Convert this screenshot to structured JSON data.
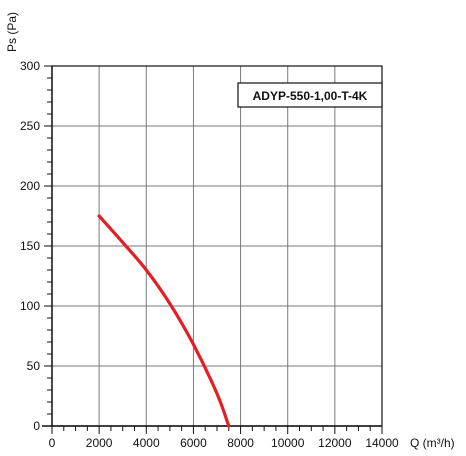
{
  "chart_data": {
    "type": "line",
    "model_label": "ADYP-550-1,00-T-4K",
    "xlabel": "Q (m³/h)",
    "ylabel": "Ps (Pa)",
    "xlim": [
      0,
      14000
    ],
    "ylim": [
      0,
      300
    ],
    "x_ticks": [
      0,
      2000,
      4000,
      6000,
      8000,
      10000,
      12000,
      14000
    ],
    "y_ticks": [
      0,
      50,
      100,
      150,
      200,
      250,
      300
    ],
    "grid": true,
    "series": [
      {
        "color": "#e31e24",
        "points": [
          {
            "x": 2000,
            "y": 175
          },
          {
            "x": 3000,
            "y": 153
          },
          {
            "x": 4000,
            "y": 130
          },
          {
            "x": 5000,
            "y": 102
          },
          {
            "x": 6000,
            "y": 68
          },
          {
            "x": 7000,
            "y": 27
          },
          {
            "x": 7500,
            "y": 0
          }
        ]
      }
    ]
  }
}
